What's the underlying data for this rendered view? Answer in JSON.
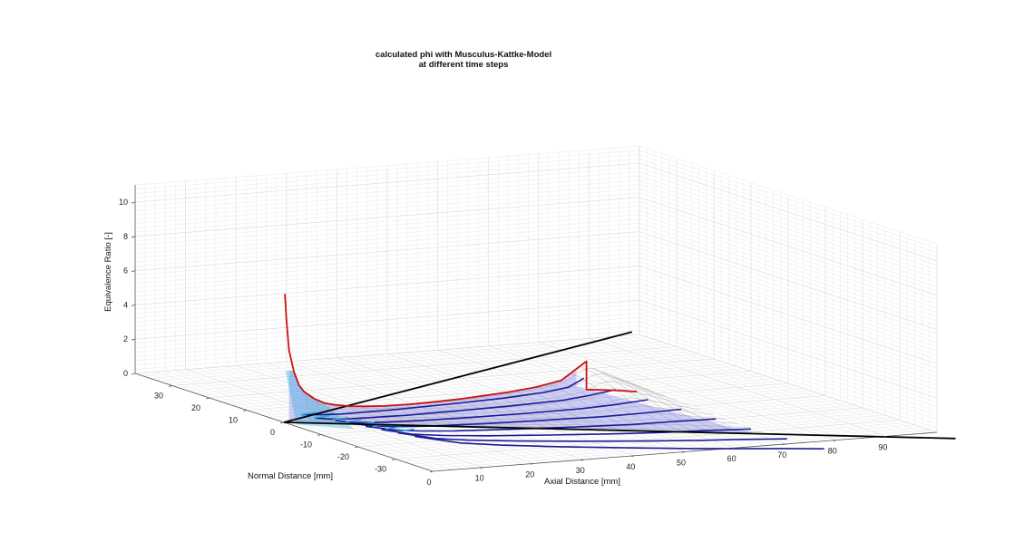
{
  "chart_data": {
    "type": "surface3d",
    "title": [
      "calculated phi with Musculus-Kattke-Model",
      "at different time steps"
    ],
    "xlabel": "Axial Distance [mm]",
    "ylabel": "Normal Distance [mm]",
    "zlabel": "Equivalence Ratio [-]",
    "xlim": [
      0,
      100
    ],
    "ylim": [
      -40,
      40
    ],
    "zlim": [
      0,
      11
    ],
    "xticks": [
      0,
      10,
      20,
      30,
      40,
      50,
      60,
      70,
      80,
      90
    ],
    "yticks": [
      -30,
      -20,
      -10,
      0,
      10,
      20,
      30
    ],
    "zticks": [
      0,
      2,
      4,
      6,
      8,
      10
    ],
    "grid": true,
    "spray_edges": [
      {
        "x": [
          0,
          100
        ],
        "y": [
          0,
          42
        ]
      },
      {
        "x": [
          0,
          100
        ],
        "y": [
          0,
          -45
        ]
      }
    ],
    "centerline_phi": {
      "x": [
        0.2,
        0.5,
        1,
        2,
        3,
        4,
        6,
        8,
        10,
        13,
        16,
        20,
        25,
        30,
        35,
        40,
        45,
        50,
        55,
        58,
        60,
        60,
        65,
        70
      ],
      "phi": [
        7.5,
        6.0,
        4.2,
        2.9,
        2.1,
        1.7,
        1.25,
        0.95,
        0.8,
        0.65,
        0.57,
        0.5,
        0.49,
        0.52,
        0.57,
        0.66,
        0.76,
        0.92,
        1.2,
        1.8,
        2.2,
        0.55,
        0.4,
        0.2
      ]
    },
    "time_step_contours": [
      {
        "x": [
          2,
          6,
          10,
          20,
          32,
          42,
          50,
          55,
          58
        ],
        "phi": [
          0.55,
          0.45,
          0.4,
          0.42,
          0.5,
          0.6,
          0.75,
          0.95,
          1.4
        ]
      },
      {
        "x": [
          3,
          6,
          10,
          20,
          30,
          40,
          50,
          55,
          60
        ],
        "phi": [
          0.5,
          0.38,
          0.33,
          0.34,
          0.42,
          0.52,
          0.66,
          0.85,
          1.1
        ]
      },
      {
        "x": [
          5,
          8,
          12,
          20,
          30,
          40,
          50,
          56,
          62
        ],
        "phi": [
          0.5,
          0.34,
          0.27,
          0.27,
          0.33,
          0.42,
          0.55,
          0.7,
          0.9
        ]
      },
      {
        "x": [
          6,
          10,
          14,
          20,
          30,
          40,
          50,
          57,
          64
        ],
        "phi": [
          0.5,
          0.3,
          0.22,
          0.2,
          0.25,
          0.34,
          0.45,
          0.58,
          0.75
        ]
      },
      {
        "x": [
          7,
          12,
          16,
          22,
          32,
          42,
          52,
          58,
          66
        ],
        "phi": [
          0.5,
          0.26,
          0.18,
          0.15,
          0.19,
          0.26,
          0.36,
          0.47,
          0.6
        ]
      },
      {
        "x": [
          8,
          13,
          18,
          25,
          35,
          45,
          54,
          60,
          68
        ],
        "phi": [
          0.5,
          0.22,
          0.14,
          0.11,
          0.14,
          0.19,
          0.27,
          0.36,
          0.45
        ]
      },
      {
        "x": [
          9,
          15,
          20,
          28,
          38,
          48,
          56,
          62,
          70
        ],
        "phi": [
          0.5,
          0.19,
          0.11,
          0.08,
          0.1,
          0.14,
          0.2,
          0.27,
          0.33
        ]
      },
      {
        "x": [
          10,
          17,
          23,
          32,
          42,
          52,
          60,
          66,
          72
        ],
        "phi": [
          0.5,
          0.16,
          0.08,
          0.05,
          0.06,
          0.09,
          0.14,
          0.19,
          0.22
        ]
      }
    ],
    "colors": {
      "centerline": "#cc1111",
      "contours": "#1a1a99",
      "near_nozzle": "#22aadd",
      "surface_fill": "#7777ee",
      "surface_mesh": "#9a9a9a",
      "spray_edge": "#000000"
    }
  }
}
